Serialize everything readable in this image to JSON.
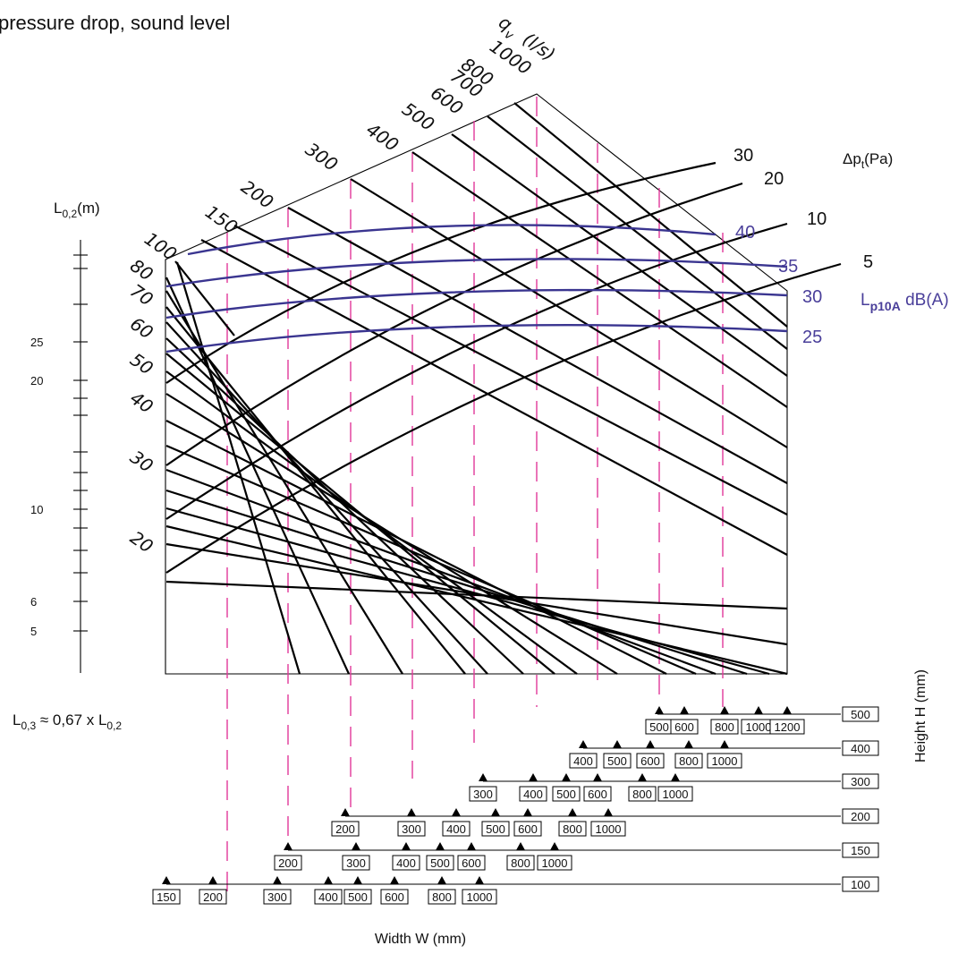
{
  "chart_data": {
    "type": "nomogram",
    "title": "pressure drop, sound level",
    "flow_axis": {
      "label": "q",
      "subscript": "v",
      "unit": "(l/s)",
      "ticks": [
        "100",
        "150",
        "200",
        "300",
        "400",
        "500",
        "600",
        "700",
        "800",
        "1000"
      ]
    },
    "throw_axis": {
      "label": "L",
      "subscript": "0,2",
      "unit": "(m)",
      "ticks": [
        "25",
        "20",
        "10",
        "6",
        "5"
      ],
      "diagonal_ticks": [
        "80",
        "70",
        "60",
        "50",
        "40",
        "30",
        "20"
      ],
      "note": {
        "prefix": "L",
        "sub1": "0,3",
        "mid": " ≈ 0,67 x L",
        "sub2": "0,2"
      }
    },
    "pressure_drop": {
      "label": "Δp",
      "subscript": "t",
      "unit": "(Pa)",
      "values": [
        "30",
        "20",
        "10",
        "5"
      ]
    },
    "sound_level": {
      "label": "L",
      "subscript": "p10A",
      "unit": " dB(A)",
      "values": [
        "40",
        "35",
        "30",
        "25"
      ],
      "color": "#4a3f9a"
    },
    "width_axis": {
      "label": "Width W (mm)"
    },
    "height_axis": {
      "label": "Height  H (mm)"
    },
    "height_rows": [
      {
        "height": "500",
        "widths": [
          "500",
          "600",
          "800",
          "1000",
          "1200"
        ]
      },
      {
        "height": "400",
        "widths": [
          "400",
          "500",
          "600",
          "800",
          "1000"
        ]
      },
      {
        "height": "300",
        "widths": [
          "300",
          "400",
          "500",
          "600",
          "800",
          "1000"
        ]
      },
      {
        "height": "200",
        "widths": [
          "200",
          "300",
          "400",
          "500",
          "600",
          "800",
          "1000"
        ]
      },
      {
        "height": "150",
        "widths": [
          "200",
          "300",
          "400",
          "500",
          "600",
          "800",
          "1000"
        ]
      },
      {
        "height": "100",
        "widths": [
          "150",
          "200",
          "300",
          "400",
          "500",
          "600",
          "800",
          "1000"
        ]
      }
    ]
  }
}
